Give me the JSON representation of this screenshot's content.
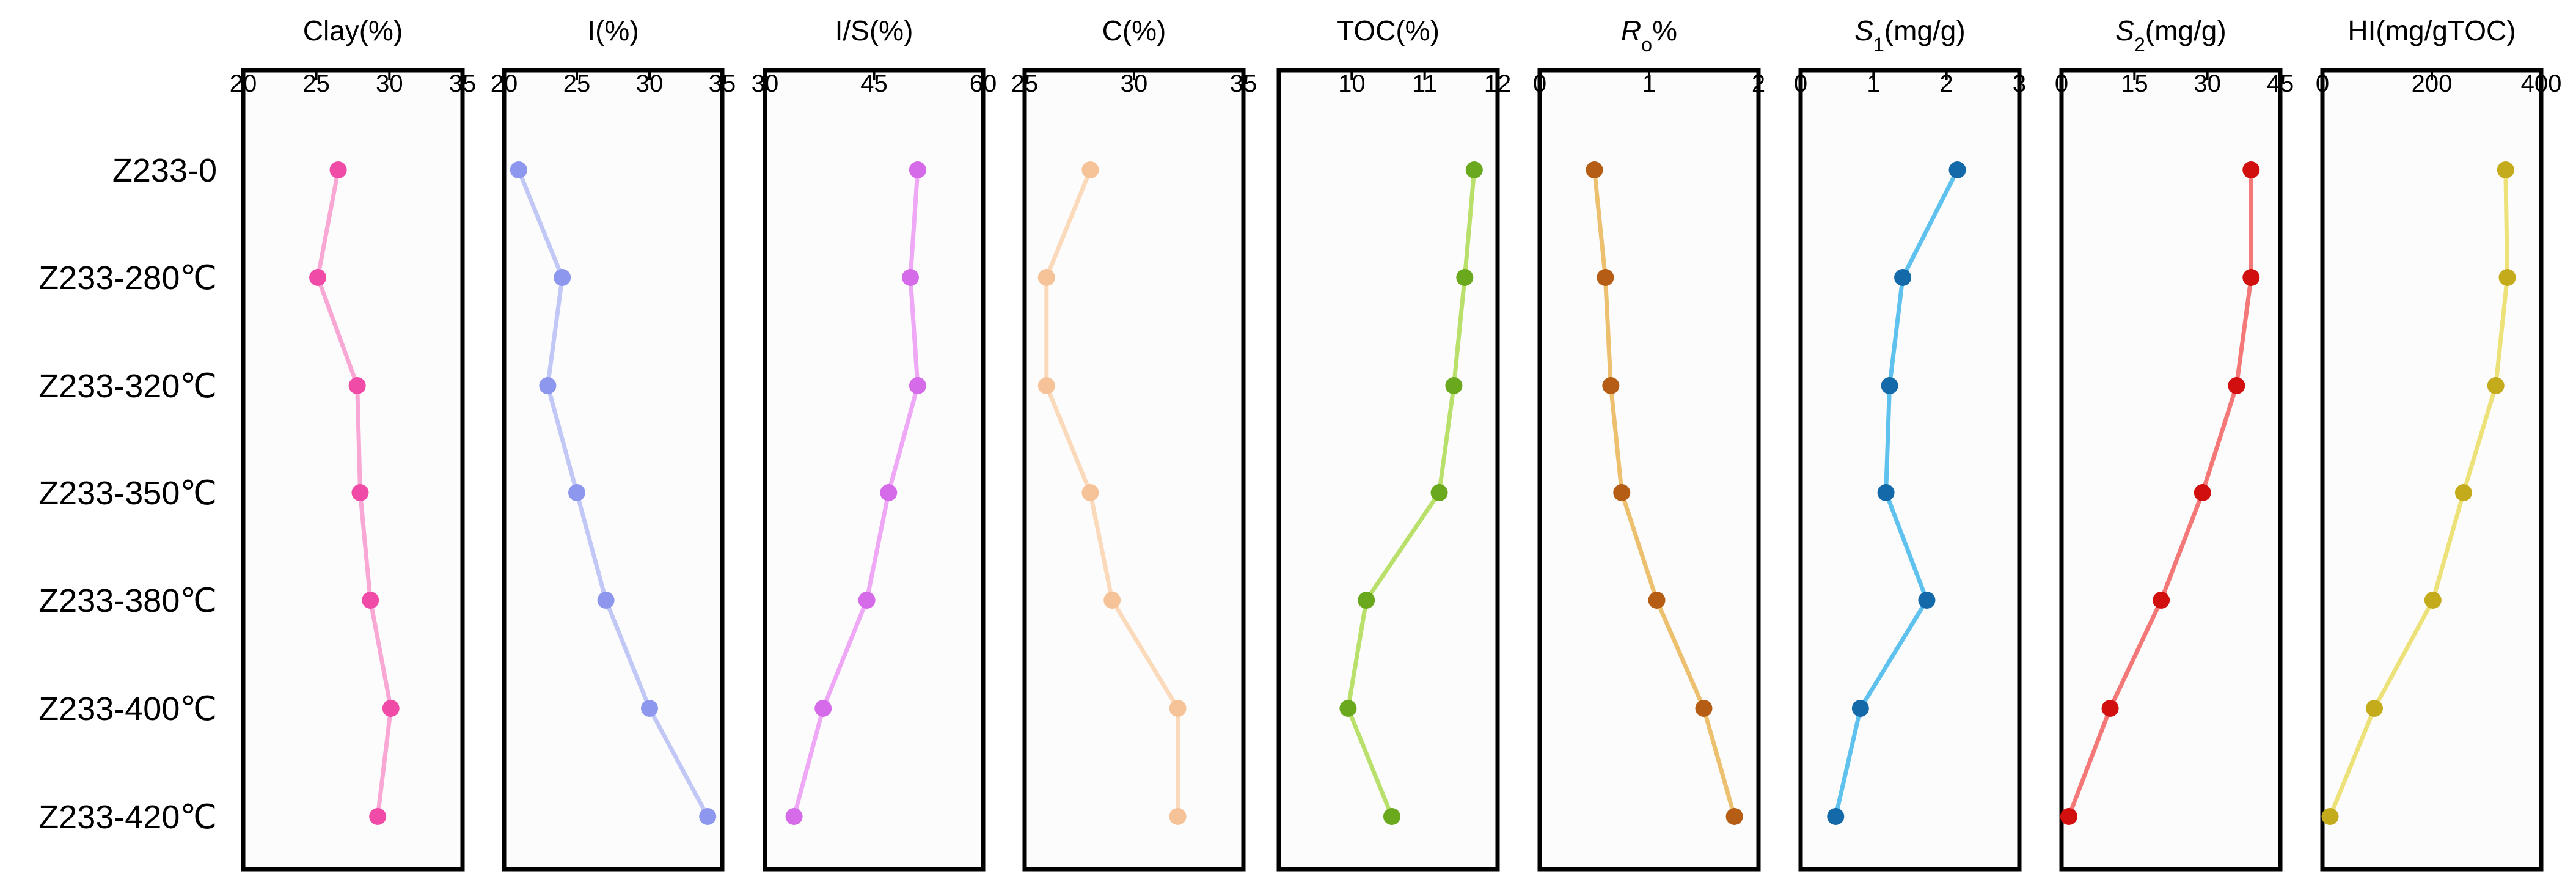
{
  "chart_data": {
    "type": "line",
    "orientation": "vertical-profiles",
    "samples": [
      "Z233-0",
      "Z233-280℃",
      "Z233-320℃",
      "Z233-350℃",
      "Z233-380℃",
      "Z233-400℃",
      "Z233-420℃"
    ],
    "panels": [
      {
        "key": "clay",
        "title": "Clay(%)",
        "xlim": [
          20,
          35
        ],
        "ticks": [
          "20",
          "25",
          "30",
          "35"
        ],
        "line_color": "#f9a8d6",
        "marker_color": "#ef4ba7",
        "values": [
          26.5,
          25.1,
          27.8,
          28.0,
          28.7,
          30.1,
          29.2
        ]
      },
      {
        "key": "illite",
        "title": "I(%)",
        "xlim": [
          20,
          35
        ],
        "ticks": [
          "20",
          "25",
          "30",
          "35"
        ],
        "line_color": "#c2c8f5",
        "marker_color": "#8d97ee",
        "values": [
          21.0,
          24.0,
          23.0,
          25.0,
          27.0,
          30.0,
          34.0
        ]
      },
      {
        "key": "is",
        "title": "I/S(%)",
        "xlim": [
          30,
          60
        ],
        "ticks": [
          "30",
          "45",
          "60"
        ],
        "line_color": "#eea8f5",
        "marker_color": "#d56be8",
        "values": [
          51.0,
          50.0,
          51.0,
          47.0,
          44.0,
          38.0,
          34.0
        ]
      },
      {
        "key": "c",
        "title": "C(%)",
        "xlim": [
          25,
          35
        ],
        "ticks": [
          "25",
          "30",
          "35"
        ],
        "line_color": "#fbd9bb",
        "marker_color": "#f6c398",
        "values": [
          28.0,
          26.0,
          26.0,
          28.0,
          29.0,
          32.0,
          32.0
        ]
      },
      {
        "key": "toc",
        "title": "TOC(%)",
        "xlim": [
          9,
          12
        ],
        "ticks": [
          "10",
          "11",
          "12"
        ],
        "line_color": "#b8e06a",
        "marker_color": "#6aa81e",
        "values": [
          11.68,
          11.55,
          11.4,
          11.2,
          10.2,
          9.95,
          10.55
        ]
      },
      {
        "key": "ro",
        "title": "Ro%",
        "xlim": [
          0,
          2
        ],
        "ticks": [
          "0",
          "1",
          "2"
        ],
        "line_color": "#ecc06e",
        "marker_color": "#b55d14",
        "values": [
          0.5,
          0.6,
          0.65,
          0.75,
          1.07,
          1.5,
          1.78
        ]
      },
      {
        "key": "s1",
        "title": "S1(mg/g)",
        "xlim": [
          0,
          3
        ],
        "ticks": [
          "0",
          "1",
          "2",
          "3"
        ],
        "line_color": "#5fc1ee",
        "marker_color": "#1469a9",
        "values": [
          2.15,
          1.4,
          1.22,
          1.17,
          1.73,
          0.82,
          0.48
        ]
      },
      {
        "key": "s2",
        "title": "S2(mg/g)",
        "xlim": [
          0,
          45
        ],
        "ticks": [
          "0",
          "15",
          "30",
          "45"
        ],
        "line_color": "#f47878",
        "marker_color": "#d10f0f",
        "values": [
          39.0,
          39.0,
          36.0,
          29.0,
          20.5,
          10.0,
          1.5
        ]
      },
      {
        "key": "hi",
        "title": "HI(mg/gTOC)",
        "xlim": [
          0,
          400
        ],
        "ticks": [
          "0",
          "200",
          "400"
        ],
        "line_color": "#ede27a",
        "marker_color": "#c4ab1c",
        "values": [
          335.0,
          338.0,
          317.0,
          258.0,
          202.0,
          95.0,
          14.0
        ]
      }
    ]
  }
}
